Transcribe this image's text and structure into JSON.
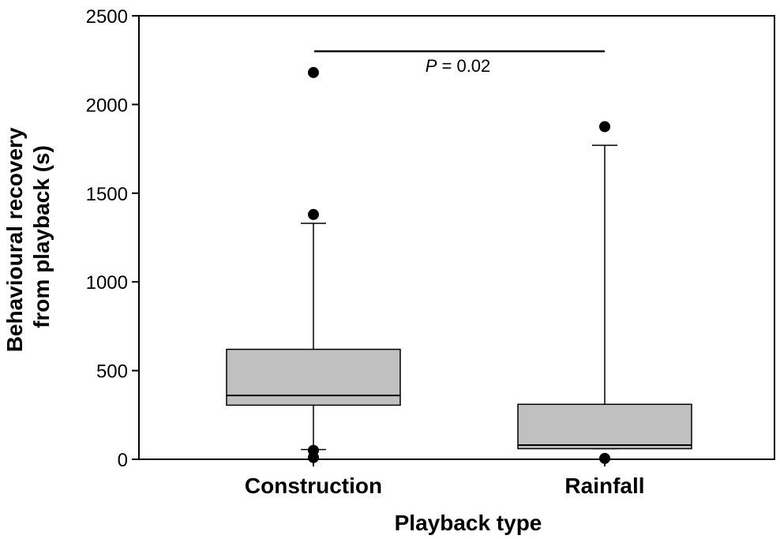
{
  "chart_data": {
    "type": "box",
    "categories": [
      "Construction",
      "Rainfall"
    ],
    "boxes": [
      {
        "category": "Construction",
        "whisker_low": 55,
        "q1": 305,
        "median": 360,
        "q3": 620,
        "whisker_high": 1330,
        "outliers": [
          2180,
          1380,
          50,
          10
        ]
      },
      {
        "category": "Rainfall",
        "whisker_low": 60,
        "q1": 60,
        "median": 80,
        "q3": 310,
        "whisker_high": 1770,
        "outliers": [
          1875,
          5
        ]
      }
    ],
    "ylim": [
      0,
      2500
    ],
    "yticks": [
      "0",
      "500",
      "1000",
      "1500",
      "2000",
      "2500"
    ],
    "ylabel_line1": "Behavioural recovery",
    "ylabel_line2": "from playback (s)",
    "xlabel": "Playback type",
    "annotation": {
      "p_symbol": "P",
      "p_text": " = 0.02"
    },
    "box_color": "#c0c0c0",
    "grid": false
  }
}
